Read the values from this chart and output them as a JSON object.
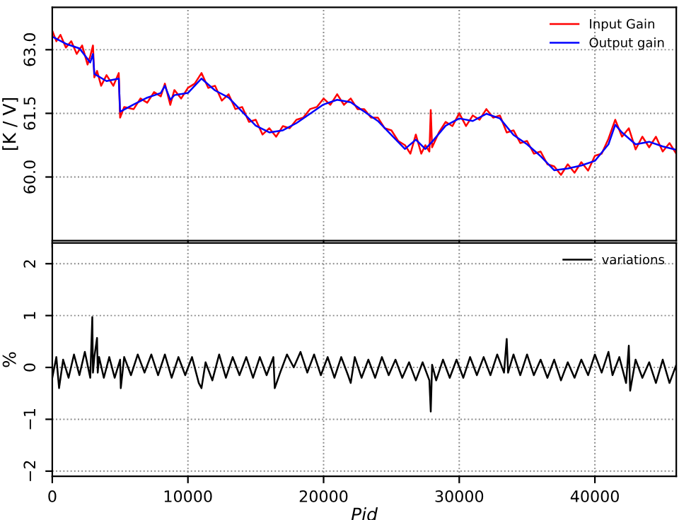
{
  "chart_data": [
    {
      "type": "line",
      "ylabel": "[K / V]",
      "xlim": [
        0,
        46000
      ],
      "ylim": [
        58.5,
        64.0
      ],
      "xticks": [
        0,
        10000,
        20000,
        30000,
        40000
      ],
      "yticks": [
        {
          "value": 60.0,
          "label": "60.0"
        },
        {
          "value": 61.5,
          "label": "61.5"
        },
        {
          "value": 63.0,
          "label": "63.0"
        }
      ],
      "tick_labels": "y",
      "grid": true,
      "legend": "top right",
      "series": [
        {
          "name": "Input Gain",
          "color": "#ff0000",
          "x": [
            0,
            300,
            600,
            1000,
            1400,
            1800,
            2200,
            2600,
            2800,
            3000,
            3100,
            3300,
            3600,
            4000,
            4500,
            4900,
            5000,
            5300,
            6000,
            6500,
            7000,
            7500,
            8000,
            8300,
            8700,
            9000,
            9500,
            10000,
            10500,
            11000,
            11500,
            12000,
            12500,
            13000,
            13500,
            14000,
            14500,
            15000,
            15500,
            16000,
            16500,
            17000,
            17500,
            18000,
            18500,
            19000,
            19500,
            20000,
            20500,
            21000,
            21500,
            22000,
            22500,
            23000,
            23500,
            24000,
            24500,
            25000,
            25500,
            26000,
            26400,
            26800,
            27200,
            27500,
            27800,
            27900,
            28000,
            28500,
            29000,
            29500,
            30000,
            30500,
            31000,
            31500,
            32000,
            32500,
            33000,
            33500,
            34000,
            34500,
            35000,
            35500,
            36000,
            36500,
            37000,
            37500,
            38000,
            38500,
            39000,
            39500,
            40000,
            40500,
            41000,
            41500,
            42000,
            42500,
            43000,
            43500,
            44000,
            44500,
            45000,
            45500,
            46000
          ],
          "values": [
            63.45,
            63.2,
            63.35,
            63.05,
            63.2,
            62.9,
            63.1,
            62.65,
            62.85,
            63.1,
            62.35,
            62.5,
            62.15,
            62.4,
            62.15,
            62.45,
            61.4,
            61.65,
            61.6,
            61.85,
            61.75,
            62.0,
            61.9,
            62.2,
            61.7,
            62.05,
            61.85,
            62.1,
            62.2,
            62.45,
            62.1,
            62.15,
            61.8,
            61.95,
            61.6,
            61.65,
            61.3,
            61.35,
            61.0,
            61.15,
            60.95,
            61.2,
            61.15,
            61.35,
            61.4,
            61.6,
            61.65,
            61.85,
            61.7,
            61.95,
            61.7,
            61.85,
            61.6,
            61.6,
            61.4,
            61.4,
            61.15,
            61.1,
            60.85,
            60.75,
            60.55,
            61.0,
            60.55,
            60.75,
            60.6,
            61.58,
            60.7,
            61.05,
            61.3,
            61.2,
            61.5,
            61.2,
            61.45,
            61.35,
            61.6,
            61.4,
            61.45,
            61.05,
            61.1,
            60.8,
            60.85,
            60.55,
            60.6,
            60.3,
            60.25,
            60.05,
            60.3,
            60.1,
            60.35,
            60.15,
            60.5,
            60.55,
            60.9,
            61.35,
            60.95,
            61.15,
            60.65,
            60.95,
            60.7,
            60.95,
            60.6,
            60.8,
            60.55
          ]
        },
        {
          "name": "Output gain",
          "color": "#0000ff",
          "x": [
            0,
            1000,
            2000,
            2800,
            3000,
            3100,
            4000,
            4900,
            5000,
            6000,
            7000,
            8000,
            8300,
            8700,
            9000,
            10000,
            11000,
            12000,
            13000,
            14000,
            15000,
            16000,
            17000,
            18000,
            19000,
            20000,
            21000,
            22000,
            23000,
            24000,
            25000,
            26000,
            26800,
            27500,
            28000,
            29000,
            30000,
            31000,
            32000,
            33000,
            34000,
            35000,
            36000,
            37000,
            38000,
            39000,
            40000,
            41000,
            41500,
            42000,
            43000,
            44000,
            45000,
            46000
          ],
          "values": [
            63.31,
            63.14,
            63.03,
            62.7,
            62.9,
            62.43,
            62.26,
            62.32,
            61.54,
            61.71,
            61.87,
            61.98,
            62.15,
            61.82,
            61.93,
            61.98,
            62.32,
            62.04,
            61.87,
            61.54,
            61.21,
            61.05,
            61.1,
            61.27,
            61.49,
            61.71,
            61.82,
            61.76,
            61.54,
            61.32,
            60.99,
            60.66,
            60.88,
            60.66,
            60.83,
            61.21,
            61.38,
            61.32,
            61.49,
            61.38,
            60.99,
            60.77,
            60.49,
            60.16,
            60.2,
            60.27,
            60.38,
            60.77,
            61.23,
            61.05,
            60.77,
            60.83,
            60.72,
            60.64
          ]
        }
      ]
    },
    {
      "type": "line",
      "xlabel": "Pid",
      "ylabel": "%",
      "xlim": [
        0,
        46000
      ],
      "ylim": [
        -2.1,
        2.4
      ],
      "xticks": [
        0,
        10000,
        20000,
        30000,
        40000
      ],
      "yticks": [
        {
          "value": -2,
          "label": "−2"
        },
        {
          "value": -1,
          "label": "−1"
        },
        0,
        1,
        2
      ],
      "grid": true,
      "legend": "top right",
      "series": [
        {
          "name": "variations",
          "color": "#000000",
          "x": [
            0,
            300,
            500,
            800,
            1200,
            1600,
            2000,
            2400,
            2800,
            2950,
            3000,
            3100,
            3300,
            3350,
            3450,
            3800,
            4200,
            4600,
            5000,
            5050,
            5300,
            5800,
            6300,
            6800,
            7300,
            7800,
            8300,
            8800,
            9300,
            9800,
            10300,
            10800,
            11000,
            11300,
            11800,
            12300,
            12800,
            13300,
            13800,
            14300,
            14800,
            15300,
            15800,
            16300,
            16400,
            16800,
            17300,
            17800,
            18300,
            18800,
            19300,
            19800,
            20300,
            20800,
            21300,
            21800,
            22000,
            22300,
            22800,
            23300,
            23800,
            24300,
            24800,
            25300,
            25800,
            26300,
            26800,
            27300,
            27800,
            27900,
            28000,
            28300,
            28800,
            29300,
            29800,
            30300,
            30800,
            31300,
            31800,
            32300,
            32800,
            33300,
            33500,
            33600,
            34000,
            34500,
            35000,
            35500,
            36000,
            36500,
            37000,
            37500,
            38000,
            38500,
            39000,
            39500,
            40000,
            40500,
            41000,
            41300,
            41800,
            42300,
            42500,
            42600,
            43000,
            43500,
            44000,
            44500,
            45000,
            45500,
            46000
          ],
          "values": [
            -0.2,
            0.2,
            -0.4,
            0.15,
            -0.2,
            0.25,
            -0.15,
            0.3,
            -0.2,
            0.97,
            -0.1,
            0.2,
            0.57,
            -0.1,
            0.2,
            -0.2,
            0.2,
            -0.2,
            0.15,
            -0.4,
            0.2,
            -0.15,
            0.25,
            -0.1,
            0.25,
            -0.15,
            0.25,
            -0.2,
            0.2,
            -0.15,
            0.2,
            -0.3,
            -0.4,
            0.1,
            -0.25,
            0.25,
            -0.2,
            0.2,
            -0.15,
            0.2,
            -0.2,
            0.2,
            -0.15,
            0.2,
            -0.4,
            -0.1,
            0.25,
            0.0,
            0.3,
            -0.1,
            0.25,
            -0.15,
            0.2,
            -0.2,
            0.2,
            -0.15,
            -0.3,
            0.2,
            -0.2,
            0.15,
            -0.2,
            0.2,
            -0.15,
            0.15,
            -0.2,
            0.1,
            -0.25,
            0.1,
            -0.25,
            -0.85,
            0.05,
            -0.25,
            0.15,
            -0.2,
            0.15,
            -0.2,
            0.2,
            -0.15,
            0.2,
            -0.15,
            0.25,
            -0.1,
            0.55,
            -0.1,
            0.25,
            -0.15,
            0.25,
            -0.15,
            0.15,
            -0.2,
            0.15,
            -0.25,
            0.1,
            -0.2,
            0.15,
            -0.15,
            0.25,
            -0.1,
            0.3,
            -0.15,
            0.2,
            -0.3,
            0.42,
            -0.45,
            0.15,
            -0.2,
            0.1,
            -0.3,
            0.15,
            -0.3,
            0.05
          ]
        }
      ]
    }
  ]
}
